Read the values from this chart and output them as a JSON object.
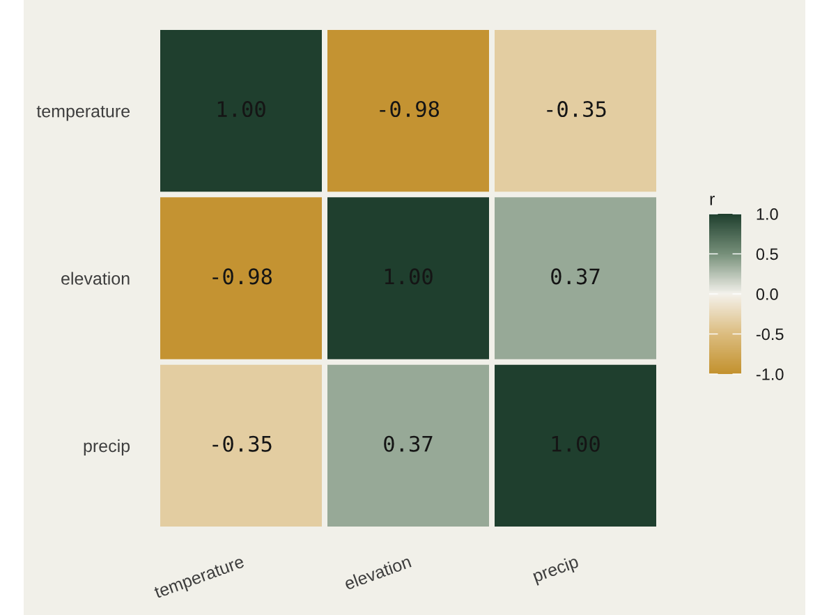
{
  "chart_data": {
    "type": "heatmap",
    "categories": [
      "temperature",
      "elevation",
      "precip"
    ],
    "y_categories": [
      "temperature",
      "elevation",
      "precip"
    ],
    "cells": [
      [
        1.0,
        -0.98,
        -0.35
      ],
      [
        -0.98,
        1.0,
        0.37
      ],
      [
        -0.35,
        0.37,
        1.0
      ]
    ],
    "cell_labels": [
      [
        "1.00",
        "-0.98",
        "-0.35"
      ],
      [
        "-0.98",
        "1.00",
        "0.37"
      ],
      [
        "-0.35",
        "0.37",
        "1.00"
      ]
    ],
    "clabel": "r",
    "clim": [
      -1,
      1
    ],
    "cticks": [
      {
        "value": -1,
        "label": "-1.0"
      },
      -0.5,
      {
        "value": 0,
        "label": "0.0"
      },
      0.5,
      {
        "value": 1,
        "label": "1.0"
      }
    ]
  }
}
